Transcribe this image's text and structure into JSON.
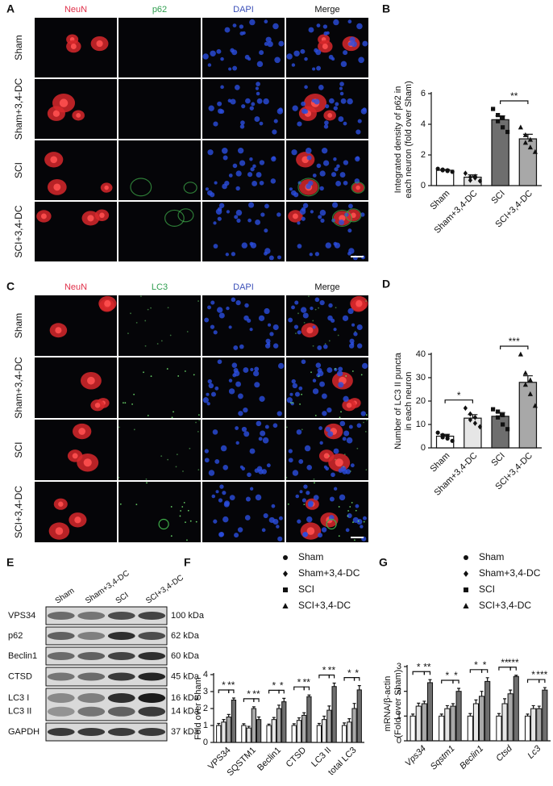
{
  "figure": {
    "panel_A": {
      "letter": "A",
      "channels": [
        "NeuN",
        "p62",
        "DAPI",
        "Merge"
      ],
      "rows": [
        "Sham",
        "Sham+3,4-DC",
        "SCI",
        "SCI+3,4-DC"
      ]
    },
    "panel_C": {
      "letter": "C",
      "channels": [
        "NeuN",
        "LC3",
        "DAPI",
        "Merge"
      ],
      "rows": [
        "Sham",
        "Sham+3,4-DC",
        "SCI",
        "SCI+3,4-DC"
      ]
    },
    "panel_E": {
      "letter": "E",
      "lanes": [
        "Sham",
        "Sham+3,4-DC",
        "SCI",
        "SCI+3,4-DC"
      ],
      "proteins": [
        "VPS34",
        "p62",
        "Beclin1",
        "CTSD",
        "LC3 I",
        "LC3 II",
        "GAPDH"
      ],
      "sizes": [
        "100 kDa",
        "62 kDa",
        "60 kDa",
        "45 kDa",
        "16 kDa",
        "14 kDa",
        "37 kDa"
      ]
    }
  },
  "chart_data": [
    {
      "type": "bar",
      "letter": "B",
      "ylabel": [
        "Integrated density of p62 in",
        "each neuron  (fold over Sham)"
      ],
      "categories": [
        "Sham",
        "Sham+3,4-DC",
        "SCI",
        "SCI+3,4-DC"
      ],
      "values": [
        1.0,
        0.55,
        4.3,
        3.05
      ],
      "errors": [
        0.05,
        0.15,
        0.25,
        0.3
      ],
      "points": [
        [
          1.1,
          1.0,
          0.95,
          1.05,
          1.0,
          0.9
        ],
        [
          0.8,
          0.55,
          0.6,
          0.35,
          0.5,
          0.3
        ],
        [
          5.0,
          4.6,
          4.4,
          4.2,
          3.8,
          3.5
        ],
        [
          3.8,
          3.3,
          3.0,
          2.8,
          2.5,
          2.2
        ]
      ],
      "markers": [
        "circle",
        "diamond",
        "square",
        "triangle"
      ],
      "colors": [
        "#ffffff",
        "#e6e6e6",
        "#6e6e6e",
        "#a8a8a8"
      ],
      "ylim": [
        0,
        6
      ],
      "yticks": [
        0,
        2,
        4,
        6
      ],
      "significance": [
        {
          "from": 2,
          "to": 3,
          "label": "**"
        }
      ]
    },
    {
      "type": "bar",
      "letter": "D",
      "ylabel": [
        "Number of LC3 II puncta",
        "in each neuron"
      ],
      "categories": [
        "Sham",
        "Sham+3,4-DC",
        "SCI",
        "SCI+3,4-DC"
      ],
      "values": [
        5.0,
        12.7,
        13.5,
        28.0
      ],
      "errors": [
        0.8,
        1.5,
        1.6,
        2.8
      ],
      "points": [
        [
          6.5,
          5.5,
          5.0,
          4.5,
          4.0,
          3.0
        ],
        [
          17.0,
          14.5,
          13.0,
          12.0,
          10.5,
          9.0
        ],
        [
          16.5,
          15.5,
          14.0,
          13.0,
          10.0,
          8.0
        ],
        [
          40.0,
          32.0,
          29.0,
          27.0,
          23.0,
          18.0
        ]
      ],
      "markers": [
        "circle",
        "diamond",
        "square",
        "triangle"
      ],
      "colors": [
        "#ffffff",
        "#e6e6e6",
        "#6e6e6e",
        "#a8a8a8"
      ],
      "ylim": [
        0,
        40
      ],
      "yticks": [
        0,
        10,
        20,
        30,
        40
      ],
      "significance": [
        {
          "from": 0,
          "to": 1,
          "label": "*"
        },
        {
          "from": 2,
          "to": 3,
          "label": "***"
        }
      ]
    },
    {
      "type": "grouped_bar",
      "letter": "F",
      "ylabel": [
        "Fold over Sham"
      ],
      "italic": false,
      "categories": [
        "VPS34",
        "SQSTM1",
        "Beclin1",
        "CTSD",
        "LC3 II",
        "total LC3"
      ],
      "series": [
        {
          "name": "Sham",
          "marker": "circle",
          "color": "#ffffff",
          "values": [
            1.0,
            1.0,
            1.0,
            1.0,
            1.0,
            1.0
          ],
          "errors": [
            0.12,
            0.1,
            0.08,
            0.1,
            0.12,
            0.15
          ]
        },
        {
          "name": "Sham+3,4-DC",
          "marker": "diamond",
          "color": "#e6e6e6",
          "values": [
            1.2,
            0.85,
            1.35,
            1.3,
            1.35,
            1.2
          ],
          "errors": [
            0.15,
            0.1,
            0.12,
            0.15,
            0.2,
            0.2
          ]
        },
        {
          "name": "SCI",
          "marker": "square",
          "color": "#a8a8a8",
          "values": [
            1.5,
            2.0,
            2.0,
            1.6,
            1.9,
            2.0
          ],
          "errors": [
            0.15,
            0.1,
            0.2,
            0.15,
            0.25,
            0.3
          ]
        },
        {
          "name": "SCI+3,4-DC",
          "marker": "triangle",
          "color": "#6e6e6e",
          "values": [
            2.5,
            1.35,
            2.4,
            2.7,
            3.3,
            3.1
          ],
          "errors": [
            0.12,
            0.15,
            0.2,
            0.1,
            0.2,
            0.25
          ]
        }
      ],
      "ylim": [
        0,
        4
      ],
      "yticks": [
        0,
        1,
        2,
        3,
        4
      ],
      "significance": [
        {
          "category": 0,
          "from": 0,
          "to": 2,
          "label": "*"
        },
        {
          "category": 0,
          "from": 2,
          "to": 3,
          "label": "**"
        },
        {
          "category": 1,
          "from": 0,
          "to": 2,
          "label": "*"
        },
        {
          "category": 1,
          "from": 2,
          "to": 3,
          "label": "**"
        },
        {
          "category": 2,
          "from": 0,
          "to": 2,
          "label": "*"
        },
        {
          "category": 2,
          "from": 2,
          "to": 3,
          "label": "*"
        },
        {
          "category": 3,
          "from": 0,
          "to": 2,
          "label": "*"
        },
        {
          "category": 3,
          "from": 2,
          "to": 3,
          "label": "**"
        },
        {
          "category": 4,
          "from": 0,
          "to": 2,
          "label": "*"
        },
        {
          "category": 4,
          "from": 2,
          "to": 3,
          "label": "**"
        },
        {
          "category": 5,
          "from": 0,
          "to": 2,
          "label": "*"
        },
        {
          "category": 5,
          "from": 2,
          "to": 3,
          "label": "*"
        }
      ]
    },
    {
      "type": "grouped_bar",
      "letter": "G",
      "ylabel": [
        "mRNA/β-actin",
        "(Fold over Sham)"
      ],
      "italic": true,
      "categories": [
        "Vps34",
        "Sqstm1",
        "Beclin1",
        "Ctsd",
        "Lc3"
      ],
      "series": [
        {
          "name": "Sham",
          "marker": "circle",
          "color": "#ffffff",
          "values": [
            1.0,
            1.0,
            1.0,
            1.0,
            1.0
          ],
          "errors": [
            0.08,
            0.08,
            0.1,
            0.1,
            0.08
          ]
        },
        {
          "name": "Sham+3,4-DC",
          "marker": "diamond",
          "color": "#e6e6e6",
          "values": [
            1.4,
            1.3,
            1.5,
            1.5,
            1.3
          ],
          "errors": [
            0.12,
            0.12,
            0.15,
            0.2,
            0.12
          ]
        },
        {
          "name": "SCI",
          "marker": "square",
          "color": "#a8a8a8",
          "values": [
            1.5,
            1.4,
            1.8,
            1.9,
            1.3
          ],
          "errors": [
            0.1,
            0.1,
            0.2,
            0.15,
            0.1
          ]
        },
        {
          "name": "SCI+3,4-DC",
          "marker": "triangle",
          "color": "#6e6e6e",
          "values": [
            2.35,
            2.0,
            2.4,
            2.6,
            2.05
          ],
          "errors": [
            0.12,
            0.12,
            0.15,
            0.05,
            0.1
          ]
        }
      ],
      "ylim": [
        0,
        3
      ],
      "yticks": [
        0,
        1,
        2,
        3
      ],
      "significance": [
        {
          "category": 0,
          "from": 0,
          "to": 2,
          "label": "*"
        },
        {
          "category": 0,
          "from": 2,
          "to": 3,
          "label": "**"
        },
        {
          "category": 1,
          "from": 0,
          "to": 2,
          "label": "*"
        },
        {
          "category": 1,
          "from": 2,
          "to": 3,
          "label": "*"
        },
        {
          "category": 2,
          "from": 0,
          "to": 2,
          "label": "*"
        },
        {
          "category": 2,
          "from": 2,
          "to": 3,
          "label": "*"
        },
        {
          "category": 3,
          "from": 0,
          "to": 2,
          "label": "**"
        },
        {
          "category": 3,
          "from": 2,
          "to": 3,
          "label": "***"
        },
        {
          "category": 4,
          "from": 0,
          "to": 2,
          "label": "*"
        },
        {
          "category": 4,
          "from": 2,
          "to": 3,
          "label": "***"
        }
      ]
    }
  ]
}
